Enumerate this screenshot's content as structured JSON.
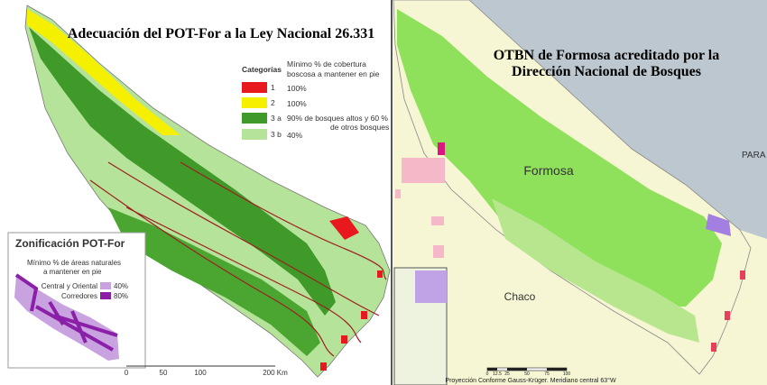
{
  "left": {
    "title": "Adecuación del POT-For a la Ley Nacional 26.331",
    "legend": {
      "heading": "Categorías",
      "subheading": [
        "Mínimo % de cobertura",
        "boscosa a mantener en pie"
      ],
      "rows": [
        {
          "label": "1",
          "text": [
            "100%"
          ]
        },
        {
          "label": "2",
          "text": [
            "100%"
          ]
        },
        {
          "label": "3 a",
          "text": [
            "90% de bosques altos y 60 %",
            "de otros bosques"
          ]
        },
        {
          "label": "3 b",
          "text": [
            "40%"
          ]
        }
      ]
    },
    "inset": {
      "title": "Zonificación POT-For",
      "subheading": [
        "Mínimo % de áreas naturales",
        "a mantener en pie"
      ],
      "rows": [
        {
          "label": "Central y Oriental",
          "text": "40%"
        },
        {
          "label": "Corredores",
          "text": "80%"
        }
      ]
    },
    "scale": [
      "0",
      "50",
      "100",
      "200 Km"
    ]
  },
  "right": {
    "title": [
      "OTBN de Formosa acreditado por la",
      "Dirección Nacional de Bosques"
    ],
    "places": [
      "Formosa",
      "PARA",
      "Chaco"
    ],
    "scale": [
      "0",
      "12.5",
      "25",
      "50",
      "75",
      "100"
    ],
    "projection": "Proyección Conforme Gauss-Krüger. Meridiano central 63°W"
  }
}
